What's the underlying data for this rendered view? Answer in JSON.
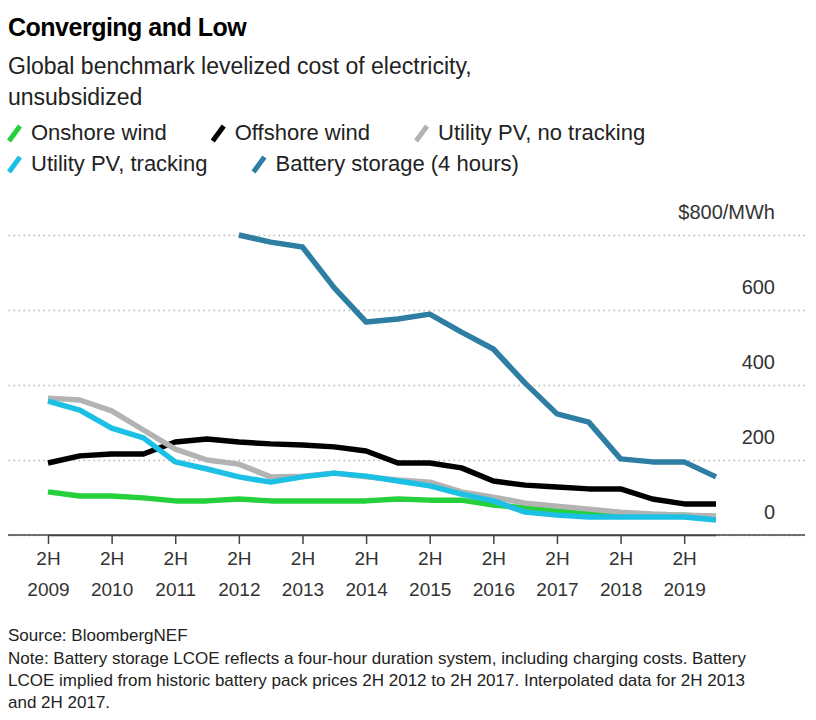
{
  "chart_data": {
    "type": "line",
    "title": "Converging and Low",
    "subtitle": "Global benchmark levelized cost of electricity, unsubsidized",
    "categories": [
      "2H 2009",
      null,
      "2H 2010",
      null,
      "2H 2011",
      null,
      "2H 2012",
      null,
      "2H 2013",
      null,
      "2H 2014",
      null,
      "2H 2015",
      null,
      "2H 2016",
      null,
      "2H 2017",
      null,
      "2H 2018",
      null,
      "2H 2019",
      null
    ],
    "series": [
      {
        "name": "Onshore wind",
        "color": "#25d03c",
        "values": [
          115,
          104,
          104,
          99,
          91,
          91,
          96,
          91,
          91,
          91,
          91,
          96,
          93,
          93,
          80,
          72,
          64,
          59,
          56,
          53,
          53,
          48
        ]
      },
      {
        "name": "Offshore wind",
        "color": "#000000",
        "values": [
          192,
          211,
          216,
          216,
          248,
          256,
          248,
          243,
          240,
          235,
          224,
          192,
          192,
          179,
          144,
          133,
          128,
          123,
          123,
          96,
          83,
          83
        ]
      },
      {
        "name": "Utility PV, no tracking",
        "color": "#b3b3b3",
        "values": [
          365,
          360,
          331,
          280,
          229,
          200,
          189,
          155,
          157,
          165,
          155,
          147,
          141,
          115,
          101,
          85,
          77,
          69,
          61,
          56,
          53,
          51
        ]
      },
      {
        "name": "Utility PV, tracking",
        "color": "#1cc0e4",
        "values": [
          357,
          333,
          285,
          259,
          195,
          176,
          155,
          141,
          155,
          165,
          157,
          144,
          131,
          109,
          91,
          61,
          53,
          48,
          48,
          48,
          48,
          40
        ]
      },
      {
        "name": "Battery storage (4 hours)",
        "color": "#2e7ea3",
        "values": [
          null,
          null,
          null,
          null,
          null,
          null,
          800,
          781,
          768,
          659,
          568,
          576,
          589,
          541,
          496,
          405,
          323,
          301,
          203,
          195,
          195,
          155
        ]
      }
    ],
    "ylim": [
      0,
      800
    ],
    "yticks": [
      0,
      200,
      400,
      600,
      {
        "value": 800,
        "label": "$800/MWh"
      }
    ],
    "grid": true,
    "legend": "top-left",
    "source": "Source: BloombergNEF",
    "note": "Note: Battery storage LCOE reflects a four-hour duration system, including charging costs. Battery LCOE implied from historic battery pack prices 2H 2012 to 2H 2017. Interpolated data for 2H 2013 and 2H 2017."
  }
}
